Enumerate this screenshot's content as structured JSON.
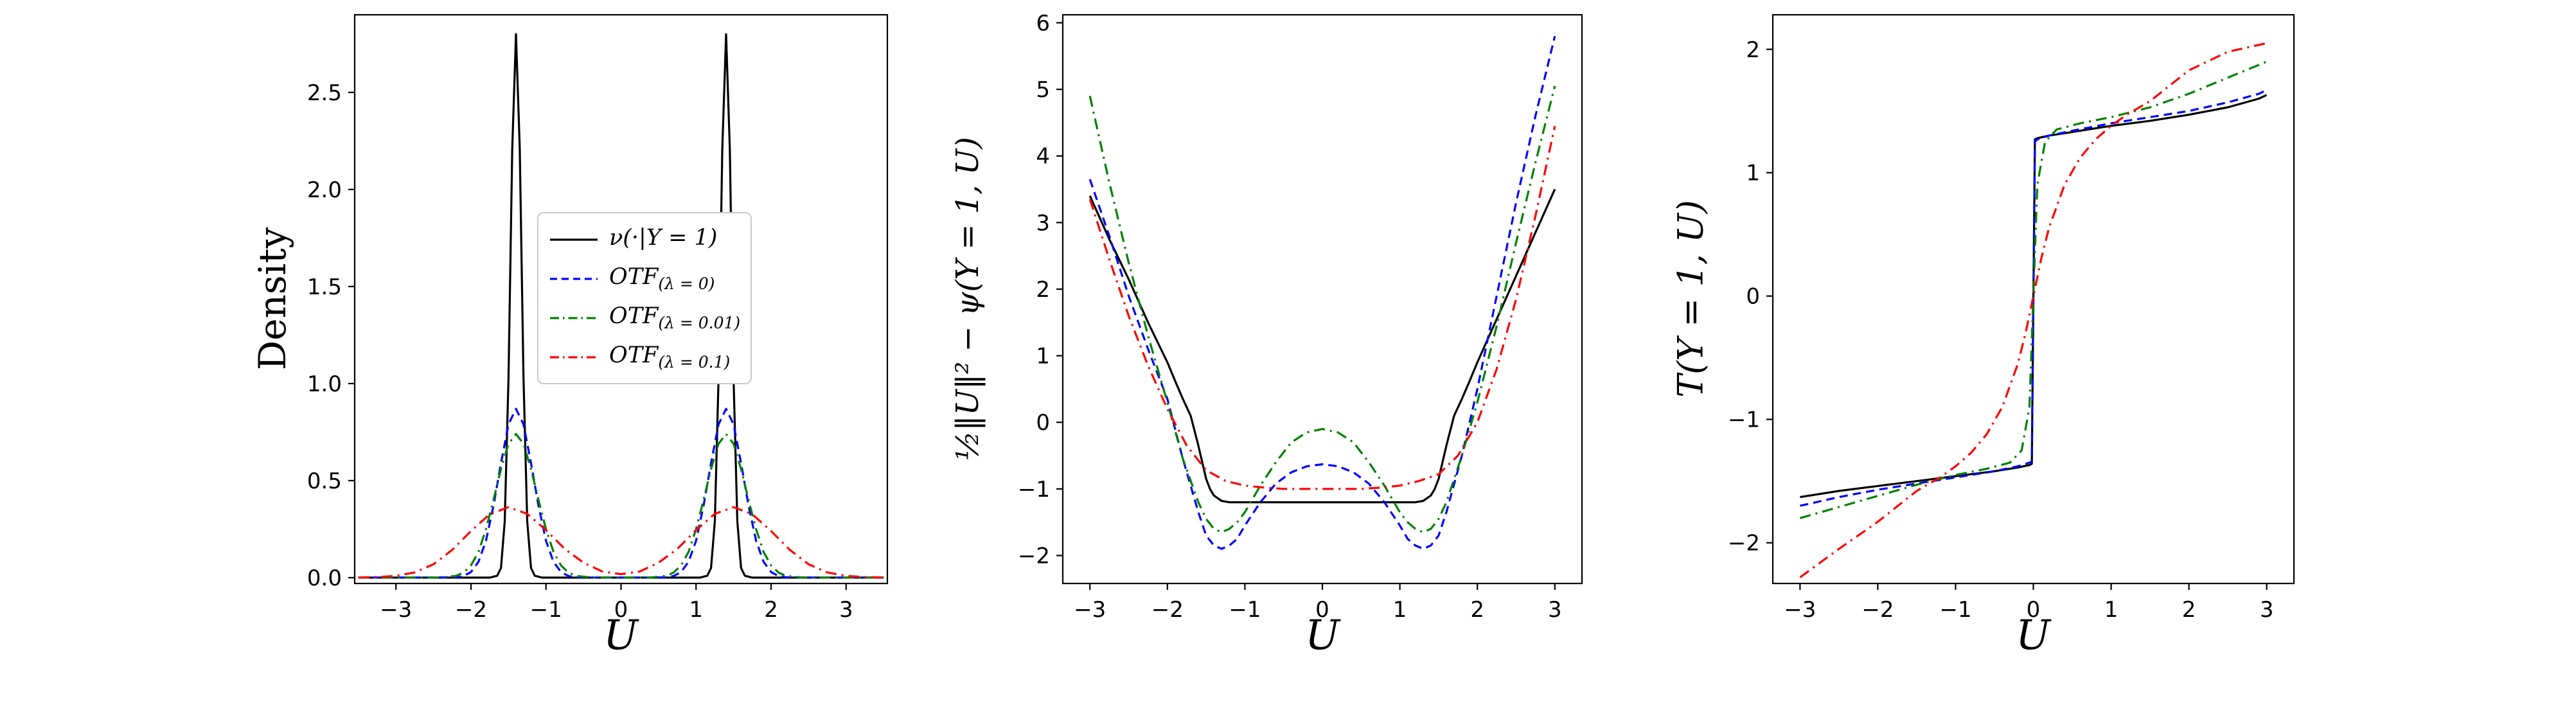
{
  "colors": {
    "black": "#000000",
    "blue": "#0000ff",
    "green": "#008000",
    "red": "#ff0000"
  },
  "chart_data": [
    {
      "id": "density",
      "type": "line",
      "xlabel": "U",
      "ylabel": "Density",
      "xlim": [
        -3.55,
        3.55
      ],
      "ylim": [
        -0.03,
        2.9
      ],
      "xticks": [
        -3,
        -2,
        -1,
        0,
        1,
        2,
        3
      ],
      "xtick_labels": [
        "−3",
        "−2",
        "−1",
        "0",
        "1",
        "2",
        "3"
      ],
      "yticks": [
        0,
        0.5,
        1,
        1.5,
        2,
        2.5
      ],
      "ytick_labels": [
        "0.0",
        "0.5",
        "1.0",
        "1.5",
        "2.0",
        "2.5"
      ],
      "legend": {
        "position": "center",
        "entries": [
          {
            "series": "nu",
            "main": "ν(·|Y = 1)",
            "sub": ""
          },
          {
            "series": "otf_l0",
            "main": "OTF",
            "sub": "(λ = 0)"
          },
          {
            "series": "otf_l001",
            "main": "OTF",
            "sub": "(λ = 0.01)"
          },
          {
            "series": "otf_l01",
            "main": "OTF",
            "sub": "(λ = 0.1)"
          }
        ]
      },
      "series": [
        {
          "name": "nu",
          "color": "black",
          "dash": "solid",
          "x": [
            -3.5,
            -2,
            -1.75,
            -1.65,
            -1.6,
            -1.55,
            -1.5,
            -1.45,
            -1.4,
            -1.35,
            -1.3,
            -1.25,
            -1.2,
            -1.15,
            -1.05,
            -0.8,
            0,
            0.8,
            1.05,
            1.15,
            1.2,
            1.25,
            1.3,
            1.35,
            1.4,
            1.45,
            1.5,
            1.55,
            1.6,
            1.65,
            1.75,
            2,
            3.5
          ],
          "y": [
            0,
            0,
            0,
            0.01,
            0.05,
            0.29,
            1.03,
            2.21,
            2.8,
            2.21,
            1.03,
            0.29,
            0.05,
            0.01,
            0,
            0,
            0,
            0,
            0,
            0.01,
            0.05,
            0.29,
            1.03,
            2.21,
            2.8,
            2.21,
            1.03,
            0.29,
            0.05,
            0.01,
            0,
            0,
            0
          ]
        },
        {
          "name": "otf_l0",
          "color": "blue",
          "dash": "dashed",
          "x": [
            -3.5,
            -2.6,
            -2.4,
            -2.2,
            -2.1,
            -2,
            -1.9,
            -1.8,
            -1.7,
            -1.6,
            -1.5,
            -1.4,
            -1.3,
            -1.2,
            -1.1,
            -1,
            -0.9,
            -0.8,
            -0.7,
            -0.6,
            -0.4,
            0,
            0.4,
            0.6,
            0.7,
            0.8,
            0.9,
            1,
            1.1,
            1.2,
            1.3,
            1.4,
            1.5,
            1.6,
            1.7,
            1.8,
            1.9,
            2,
            2.1,
            2.2,
            2.4,
            2.6,
            3.5
          ],
          "y": [
            0,
            0,
            0.001,
            0.002,
            0.008,
            0.029,
            0.082,
            0.19,
            0.37,
            0.59,
            0.79,
            0.87,
            0.79,
            0.59,
            0.37,
            0.19,
            0.082,
            0.029,
            0.008,
            0.002,
            0,
            0,
            0,
            0.002,
            0.008,
            0.029,
            0.082,
            0.19,
            0.37,
            0.59,
            0.79,
            0.87,
            0.79,
            0.59,
            0.37,
            0.19,
            0.082,
            0.029,
            0.008,
            0.002,
            0.001,
            0,
            0
          ]
        },
        {
          "name": "otf_l001",
          "color": "green",
          "dash": "dashdot",
          "x": [
            -3.5,
            -2.6,
            -2.4,
            -2.2,
            -2.1,
            -2,
            -1.9,
            -1.8,
            -1.7,
            -1.6,
            -1.5,
            -1.4,
            -1.3,
            -1.2,
            -1.1,
            -1,
            -0.9,
            -0.8,
            -0.7,
            -0.6,
            -0.4,
            0,
            0.4,
            0.6,
            0.7,
            0.8,
            0.9,
            1,
            1.1,
            1.2,
            1.3,
            1.4,
            1.5,
            1.6,
            1.7,
            1.8,
            1.9,
            2,
            2.1,
            2.2,
            2.4,
            2.6,
            3.5
          ],
          "y": [
            0,
            0,
            0.001,
            0.009,
            0.026,
            0.063,
            0.133,
            0.25,
            0.4,
            0.56,
            0.69,
            0.74,
            0.69,
            0.56,
            0.4,
            0.25,
            0.133,
            0.063,
            0.026,
            0.009,
            0.001,
            0,
            0.001,
            0.009,
            0.026,
            0.063,
            0.133,
            0.25,
            0.4,
            0.56,
            0.69,
            0.74,
            0.69,
            0.56,
            0.4,
            0.25,
            0.133,
            0.063,
            0.026,
            0.009,
            0.001,
            0,
            0
          ]
        },
        {
          "name": "otf_l01",
          "color": "red",
          "dash": "dashdot",
          "x": [
            -3.5,
            -3.25,
            -3,
            -2.75,
            -2.5,
            -2.25,
            -2,
            -1.75,
            -1.5,
            -1.25,
            -1,
            -0.75,
            -0.5,
            -0.25,
            0,
            0.25,
            0.5,
            0.75,
            1,
            1.25,
            1.5,
            1.75,
            2,
            2.25,
            2.5,
            2.75,
            3,
            3.25,
            3.5
          ],
          "y": [
            0.001,
            0.003,
            0.009,
            0.027,
            0.069,
            0.143,
            0.24,
            0.327,
            0.363,
            0.329,
            0.245,
            0.148,
            0.077,
            0.032,
            0.018,
            0.032,
            0.077,
            0.148,
            0.245,
            0.329,
            0.363,
            0.327,
            0.24,
            0.143,
            0.069,
            0.027,
            0.009,
            0.003,
            0.001
          ]
        }
      ]
    },
    {
      "id": "potential",
      "type": "line",
      "xlabel": "U",
      "ylabel": "½‖U‖² − ψ(Y = 1, U)",
      "xlim": [
        -3.35,
        3.35
      ],
      "ylim": [
        -2.42,
        6.12
      ],
      "xticks": [
        -3,
        -2,
        -1,
        0,
        1,
        2,
        3
      ],
      "xtick_labels": [
        "−3",
        "−2",
        "−1",
        "0",
        "1",
        "2",
        "3"
      ],
      "yticks": [
        -2,
        -1,
        0,
        1,
        2,
        3,
        4,
        5,
        6
      ],
      "ytick_labels": [
        "−2",
        "−1",
        "0",
        "1",
        "2",
        "3",
        "4",
        "5",
        "6"
      ],
      "series": [
        {
          "name": "nu",
          "color": "black",
          "dash": "solid",
          "x": [
            -3,
            -2.75,
            -2.5,
            -2.25,
            -2,
            -1.9,
            -1.8,
            -1.7,
            -1.6,
            -1.5,
            -1.45,
            -1.4,
            -1.3,
            -1.2,
            -1,
            -0.5,
            0,
            0.5,
            1,
            1.2,
            1.3,
            1.4,
            1.45,
            1.5,
            1.6,
            1.7,
            1.8,
            1.9,
            2,
            2.25,
            2.5,
            2.75,
            3
          ],
          "y": [
            3.4,
            2.75,
            2.15,
            1.5,
            0.9,
            0.62,
            0.35,
            0.1,
            -0.35,
            -0.85,
            -1.0,
            -1.1,
            -1.18,
            -1.2,
            -1.2,
            -1.2,
            -1.2,
            -1.2,
            -1.2,
            -1.2,
            -1.18,
            -1.1,
            -1.0,
            -0.85,
            -0.35,
            0.1,
            0.35,
            0.62,
            0.9,
            1.55,
            2.2,
            2.85,
            3.5
          ]
        },
        {
          "name": "otf_l0",
          "color": "blue",
          "dash": "dashed",
          "x": [
            -3,
            -2.75,
            -2.5,
            -2.25,
            -2,
            -1.8,
            -1.6,
            -1.5,
            -1.4,
            -1.3,
            -1.2,
            -1.1,
            -1,
            -0.8,
            -0.6,
            -0.4,
            -0.2,
            0,
            0.2,
            0.4,
            0.6,
            0.8,
            1,
            1.1,
            1.2,
            1.3,
            1.4,
            1.5,
            1.6,
            1.8,
            2,
            2.25,
            2.5,
            2.75,
            3
          ],
          "y": [
            3.65,
            2.8,
            1.9,
            1.1,
            0.35,
            -0.55,
            -1.35,
            -1.7,
            -1.85,
            -1.9,
            -1.85,
            -1.75,
            -1.55,
            -1.2,
            -0.92,
            -0.75,
            -0.66,
            -0.63,
            -0.66,
            -0.75,
            -0.92,
            -1.2,
            -1.55,
            -1.75,
            -1.85,
            -1.9,
            -1.85,
            -1.7,
            -1.35,
            -0.5,
            0.5,
            1.9,
            3.3,
            4.6,
            5.8
          ]
        },
        {
          "name": "otf_l001",
          "color": "green",
          "dash": "dashdot",
          "x": [
            -3,
            -2.75,
            -2.5,
            -2.25,
            -2,
            -1.8,
            -1.6,
            -1.5,
            -1.4,
            -1.3,
            -1.2,
            -1.1,
            -1,
            -0.8,
            -0.6,
            -0.4,
            -0.2,
            0,
            0.2,
            0.4,
            0.6,
            0.8,
            1,
            1.1,
            1.2,
            1.3,
            1.4,
            1.5,
            1.6,
            1.8,
            2,
            2.25,
            2.5,
            2.75,
            3
          ],
          "y": [
            4.9,
            3.6,
            2.4,
            1.3,
            0.3,
            -0.55,
            -1.2,
            -1.45,
            -1.6,
            -1.65,
            -1.6,
            -1.5,
            -1.35,
            -0.95,
            -0.6,
            -0.3,
            -0.15,
            -0.1,
            -0.15,
            -0.3,
            -0.6,
            -0.95,
            -1.35,
            -1.5,
            -1.6,
            -1.65,
            -1.6,
            -1.45,
            -1.2,
            -0.5,
            0.3,
            1.45,
            2.7,
            3.9,
            5.05
          ]
        },
        {
          "name": "otf_l01",
          "color": "red",
          "dash": "dashdot",
          "x": [
            -3,
            -2.75,
            -2.5,
            -2.25,
            -2,
            -1.75,
            -1.5,
            -1.25,
            -1,
            -0.75,
            -0.5,
            -0.25,
            0,
            0.25,
            0.5,
            0.75,
            1,
            1.25,
            1.5,
            1.75,
            2,
            2.25,
            2.5,
            2.75,
            3
          ],
          "y": [
            3.35,
            2.45,
            1.6,
            0.85,
            0.2,
            -0.35,
            -0.72,
            -0.88,
            -0.95,
            -0.98,
            -1.0,
            -1.0,
            -1.0,
            -1.0,
            -1.0,
            -0.98,
            -0.95,
            -0.88,
            -0.78,
            -0.5,
            0.0,
            0.8,
            1.85,
            3.1,
            4.45
          ]
        }
      ]
    },
    {
      "id": "transport",
      "type": "line",
      "xlabel": "U",
      "ylabel": "T(Y = 1, U)",
      "xlim": [
        -3.35,
        3.35
      ],
      "ylim": [
        -2.33,
        2.28
      ],
      "xticks": [
        -3,
        -2,
        -1,
        0,
        1,
        2,
        3
      ],
      "xtick_labels": [
        "−3",
        "−2",
        "−1",
        "0",
        "1",
        "2",
        "3"
      ],
      "yticks": [
        -2,
        -1,
        0,
        1,
        2
      ],
      "ytick_labels": [
        "−2",
        "−1",
        "0",
        "1",
        "2"
      ],
      "series": [
        {
          "name": "nu",
          "color": "black",
          "dash": "solid",
          "x": [
            -3,
            -2.5,
            -2,
            -1.5,
            -1,
            -0.5,
            -0.2,
            -0.05,
            -0.02,
            0.02,
            0.05,
            0.2,
            0.5,
            1,
            1.5,
            2,
            2.5,
            2.9,
            3
          ],
          "y": [
            -1.63,
            -1.58,
            -1.54,
            -1.5,
            -1.46,
            -1.42,
            -1.39,
            -1.37,
            -1.36,
            1.27,
            1.28,
            1.3,
            1.33,
            1.38,
            1.42,
            1.47,
            1.53,
            1.6,
            1.63
          ]
        },
        {
          "name": "otf_l0",
          "color": "blue",
          "dash": "dashed",
          "x": [
            -3,
            -2.5,
            -2,
            -1.5,
            -1,
            -0.5,
            -0.2,
            -0.05,
            -0.02,
            0.02,
            0.05,
            0.2,
            0.5,
            1,
            1.5,
            2,
            2.5,
            2.9,
            3
          ],
          "y": [
            -1.7,
            -1.63,
            -1.57,
            -1.52,
            -1.47,
            -1.42,
            -1.38,
            -1.35,
            -1.34,
            1.25,
            1.27,
            1.3,
            1.34,
            1.4,
            1.45,
            1.5,
            1.57,
            1.64,
            1.67
          ]
        },
        {
          "name": "otf_l001",
          "color": "green",
          "dash": "dashdot",
          "x": [
            -3,
            -2.5,
            -2,
            -1.5,
            -1,
            -0.6,
            -0.3,
            -0.15,
            -0.05,
            0,
            0.05,
            0.15,
            0.3,
            0.6,
            1,
            1.5,
            2,
            2.5,
            3
          ],
          "y": [
            -1.8,
            -1.71,
            -1.62,
            -1.53,
            -1.45,
            -1.4,
            -1.35,
            -1.25,
            -0.9,
            0,
            0.9,
            1.25,
            1.35,
            1.4,
            1.45,
            1.53,
            1.64,
            1.77,
            1.9
          ]
        },
        {
          "name": "otf_l01",
          "color": "red",
          "dash": "dashdot",
          "x": [
            -3,
            -2.5,
            -2,
            -1.5,
            -1.2,
            -1,
            -0.8,
            -0.6,
            -0.4,
            -0.2,
            -0.1,
            0,
            0.1,
            0.2,
            0.4,
            0.6,
            0.8,
            1,
            1.2,
            1.5,
            2,
            2.5,
            3
          ],
          "y": [
            -2.28,
            -2.05,
            -1.83,
            -1.58,
            -1.47,
            -1.38,
            -1.27,
            -1.12,
            -0.9,
            -0.55,
            -0.3,
            0,
            0.3,
            0.55,
            0.9,
            1.12,
            1.27,
            1.38,
            1.47,
            1.58,
            1.83,
            1.98,
            2.05
          ]
        }
      ]
    }
  ]
}
